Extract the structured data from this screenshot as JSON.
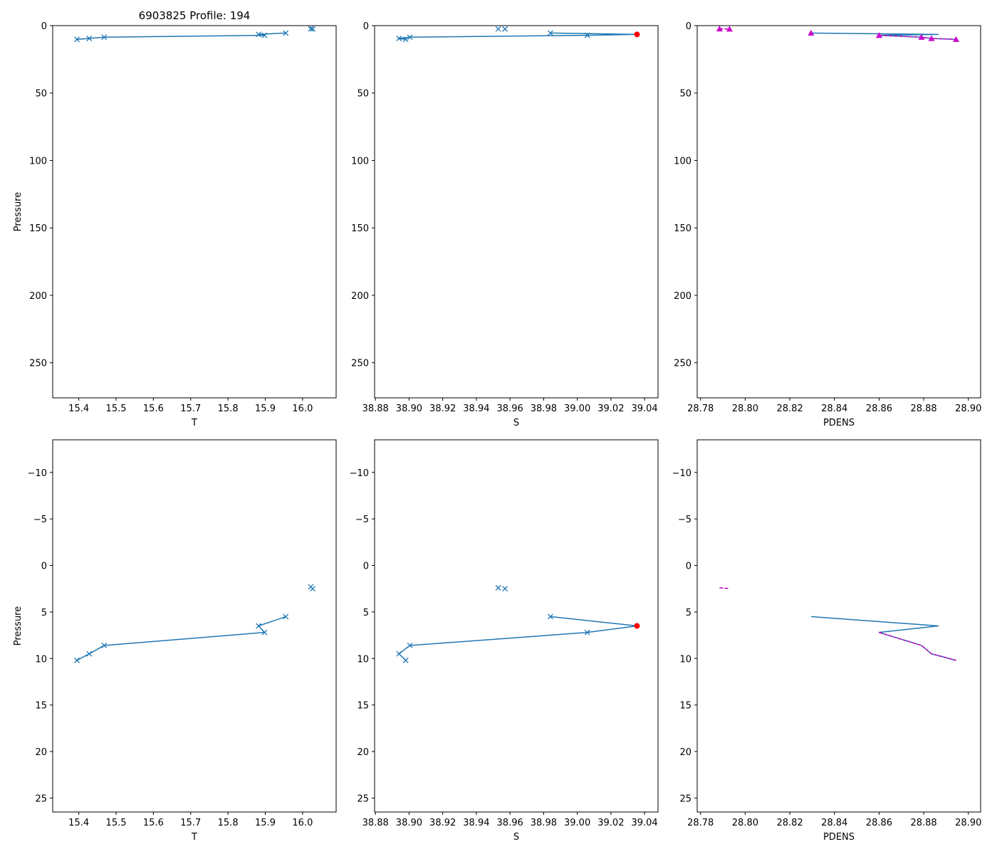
{
  "figure_title": "6903825 Profile: 194",
  "colors": {
    "main": "#1f77b4",
    "red": "#ff0000",
    "magenta": "#bf00bf",
    "magenta_marker": "#cc00cc"
  },
  "chart_data": [
    {
      "type": "line",
      "panel": "top-left",
      "title": "6903825 Profile: 194",
      "xlabel": "T",
      "ylabel": "Pressure",
      "xlim": [
        15.33,
        16.09
      ],
      "ylim": [
        276,
        0
      ],
      "xticks": [
        15.4,
        15.5,
        15.6,
        15.7,
        15.8,
        15.9,
        16.0
      ],
      "xtick_labels": [
        "15.4",
        "15.5",
        "15.6",
        "15.7",
        "15.8",
        "15.9",
        "16.0"
      ],
      "yticks": [
        0,
        50,
        100,
        150,
        200,
        250
      ],
      "ytick_labels": [
        "0",
        "50",
        "100",
        "150",
        "200",
        "250"
      ],
      "series": [
        {
          "name": "T line",
          "kind": "line",
          "color": "main",
          "x": [
            15.955,
            15.882,
            15.898,
            15.468,
            15.428,
            15.395
          ],
          "y": [
            5.5,
            6.5,
            7.2,
            8.6,
            9.5,
            10.2
          ]
        },
        {
          "name": "T points",
          "kind": "x",
          "color": "main",
          "x": [
            16.022,
            16.027,
            15.955,
            15.882,
            15.898,
            15.468,
            15.428,
            15.395
          ],
          "y": [
            2.3,
            2.5,
            5.5,
            6.5,
            7.2,
            8.6,
            9.5,
            10.2
          ]
        }
      ]
    },
    {
      "type": "line",
      "panel": "top-middle",
      "title": "",
      "xlabel": "S",
      "ylabel": "",
      "xlim": [
        38.8795,
        39.048
      ],
      "ylim": [
        276,
        0
      ],
      "xticks": [
        38.88,
        38.9,
        38.92,
        38.94,
        38.96,
        38.98,
        39.0,
        39.02,
        39.04
      ],
      "xtick_labels": [
        "38.88",
        "38.90",
        "38.92",
        "38.94",
        "38.96",
        "38.98",
        "39.00",
        "39.02",
        "39.04"
      ],
      "yticks": [
        0,
        50,
        100,
        150,
        200,
        250
      ],
      "ytick_labels": [
        "0",
        "50",
        "100",
        "150",
        "200",
        "250"
      ],
      "series": [
        {
          "name": "S line",
          "kind": "line",
          "color": "main",
          "x": [
            38.984,
            39.0355,
            39.006,
            38.9005,
            38.894,
            38.898
          ],
          "y": [
            5.5,
            6.5,
            7.2,
            8.6,
            9.5,
            10.2
          ]
        },
        {
          "name": "S points",
          "kind": "x",
          "color": "main",
          "x": [
            38.953,
            38.957,
            38.984,
            39.006,
            38.9005,
            38.894,
            38.898
          ],
          "y": [
            2.4,
            2.5,
            5.5,
            7.2,
            8.6,
            9.5,
            10.2
          ]
        },
        {
          "name": "S flagged",
          "kind": "dot",
          "color": "red",
          "x": [
            39.0355
          ],
          "y": [
            6.5
          ]
        }
      ]
    },
    {
      "type": "line",
      "panel": "top-right",
      "title": "",
      "xlabel": "PDENS",
      "ylabel": "",
      "xlim": [
        28.7785,
        28.9055
      ],
      "ylim": [
        276,
        0
      ],
      "xticks": [
        28.78,
        28.8,
        28.82,
        28.84,
        28.86,
        28.88,
        28.9
      ],
      "xtick_labels": [
        "28.78",
        "28.80",
        "28.82",
        "28.84",
        "28.86",
        "28.88",
        "28.90"
      ],
      "yticks": [
        0,
        50,
        100,
        150,
        200,
        250
      ],
      "ytick_labels": [
        "0",
        "50",
        "100",
        "150",
        "200",
        "250"
      ],
      "series": [
        {
          "name": "PDENS line",
          "kind": "line",
          "color": "main",
          "x": [
            28.8295,
            28.8865,
            28.86,
            28.879,
            28.8835,
            28.8945
          ],
          "y": [
            5.5,
            6.5,
            7.2,
            8.6,
            9.5,
            10.2
          ]
        },
        {
          "name": "PDENS dashed a",
          "kind": "dashed",
          "color": "magenta",
          "x": [
            28.7885,
            28.793
          ],
          "y": [
            2.4,
            2.5
          ]
        },
        {
          "name": "PDENS dashed b",
          "kind": "dashed",
          "color": "magenta",
          "x": [
            28.86,
            28.879,
            28.8835,
            28.8945
          ],
          "y": [
            7.2,
            8.6,
            9.5,
            10.2
          ]
        },
        {
          "name": "PDENS triangles",
          "kind": "triangle",
          "color": "magenta_marker",
          "x": [
            28.7885,
            28.793,
            28.8295,
            28.86,
            28.879,
            28.8835,
            28.8945
          ],
          "y": [
            2.4,
            2.5,
            5.5,
            7.2,
            8.6,
            9.5,
            10.2
          ]
        }
      ]
    },
    {
      "type": "line",
      "panel": "bottom-left",
      "title": "",
      "xlabel": "T",
      "ylabel": "Pressure",
      "xlim": [
        15.33,
        16.09
      ],
      "ylim": [
        26.5,
        -13.5
      ],
      "xticks": [
        15.4,
        15.5,
        15.6,
        15.7,
        15.8,
        15.9,
        16.0
      ],
      "xtick_labels": [
        "15.4",
        "15.5",
        "15.6",
        "15.7",
        "15.8",
        "15.9",
        "16.0"
      ],
      "yticks": [
        -10,
        -5,
        0,
        5,
        10,
        15,
        20,
        25
      ],
      "ytick_labels": [
        "−10",
        "−5",
        "0",
        "5",
        "10",
        "15",
        "20",
        "25"
      ],
      "series": [
        {
          "name": "T line",
          "kind": "line",
          "color": "main",
          "x": [
            15.955,
            15.882,
            15.898,
            15.468,
            15.428,
            15.395
          ],
          "y": [
            5.5,
            6.5,
            7.2,
            8.6,
            9.5,
            10.2
          ]
        },
        {
          "name": "T points",
          "kind": "x",
          "color": "main",
          "x": [
            16.022,
            16.027,
            15.955,
            15.882,
            15.898,
            15.468,
            15.428,
            15.395
          ],
          "y": [
            2.3,
            2.5,
            5.5,
            6.5,
            7.2,
            8.6,
            9.5,
            10.2
          ]
        }
      ]
    },
    {
      "type": "line",
      "panel": "bottom-middle",
      "title": "",
      "xlabel": "S",
      "ylabel": "",
      "xlim": [
        38.8795,
        39.048
      ],
      "ylim": [
        26.5,
        -13.5
      ],
      "xticks": [
        38.88,
        38.9,
        38.92,
        38.94,
        38.96,
        38.98,
        39.0,
        39.02,
        39.04
      ],
      "xtick_labels": [
        "38.88",
        "38.90",
        "38.92",
        "38.94",
        "38.96",
        "38.98",
        "39.00",
        "39.02",
        "39.04"
      ],
      "yticks": [
        -10,
        -5,
        0,
        5,
        10,
        15,
        20,
        25
      ],
      "ytick_labels": [
        "−10",
        "−5",
        "0",
        "5",
        "10",
        "15",
        "20",
        "25"
      ],
      "series": [
        {
          "name": "S line",
          "kind": "line",
          "color": "main",
          "x": [
            38.984,
            39.0355,
            39.006,
            38.9005,
            38.894,
            38.898
          ],
          "y": [
            5.5,
            6.5,
            7.2,
            8.6,
            9.5,
            10.2
          ]
        },
        {
          "name": "S points",
          "kind": "x",
          "color": "main",
          "x": [
            38.953,
            38.957,
            38.984,
            39.006,
            38.9005,
            38.894,
            38.898
          ],
          "y": [
            2.4,
            2.5,
            5.5,
            7.2,
            8.6,
            9.5,
            10.2
          ]
        },
        {
          "name": "S flagged",
          "kind": "dot",
          "color": "red",
          "x": [
            39.0355
          ],
          "y": [
            6.5
          ]
        }
      ]
    },
    {
      "type": "line",
      "panel": "bottom-right",
      "title": "",
      "xlabel": "PDENS",
      "ylabel": "",
      "xlim": [
        28.7785,
        28.9055
      ],
      "ylim": [
        26.5,
        -13.5
      ],
      "xticks": [
        28.78,
        28.8,
        28.82,
        28.84,
        28.86,
        28.88,
        28.9
      ],
      "xtick_labels": [
        "28.78",
        "28.80",
        "28.82",
        "28.84",
        "28.86",
        "28.88",
        "28.90"
      ],
      "yticks": [
        -10,
        -5,
        0,
        5,
        10,
        15,
        20,
        25
      ],
      "ytick_labels": [
        "−10",
        "−5",
        "0",
        "5",
        "10",
        "15",
        "20",
        "25"
      ],
      "series": [
        {
          "name": "PDENS line",
          "kind": "line",
          "color": "main",
          "x": [
            28.8295,
            28.8865,
            28.86,
            28.879,
            28.8835,
            28.8945
          ],
          "y": [
            5.5,
            6.5,
            7.2,
            8.6,
            9.5,
            10.2
          ]
        },
        {
          "name": "PDENS dashed a",
          "kind": "dashed",
          "color": "magenta",
          "x": [
            28.7885,
            28.793
          ],
          "y": [
            2.4,
            2.5
          ]
        },
        {
          "name": "PDENS dashed b",
          "kind": "dashed",
          "color": "magenta",
          "x": [
            28.86,
            28.879,
            28.8835,
            28.8945
          ],
          "y": [
            7.2,
            8.6,
            9.5,
            10.2
          ]
        }
      ]
    }
  ]
}
